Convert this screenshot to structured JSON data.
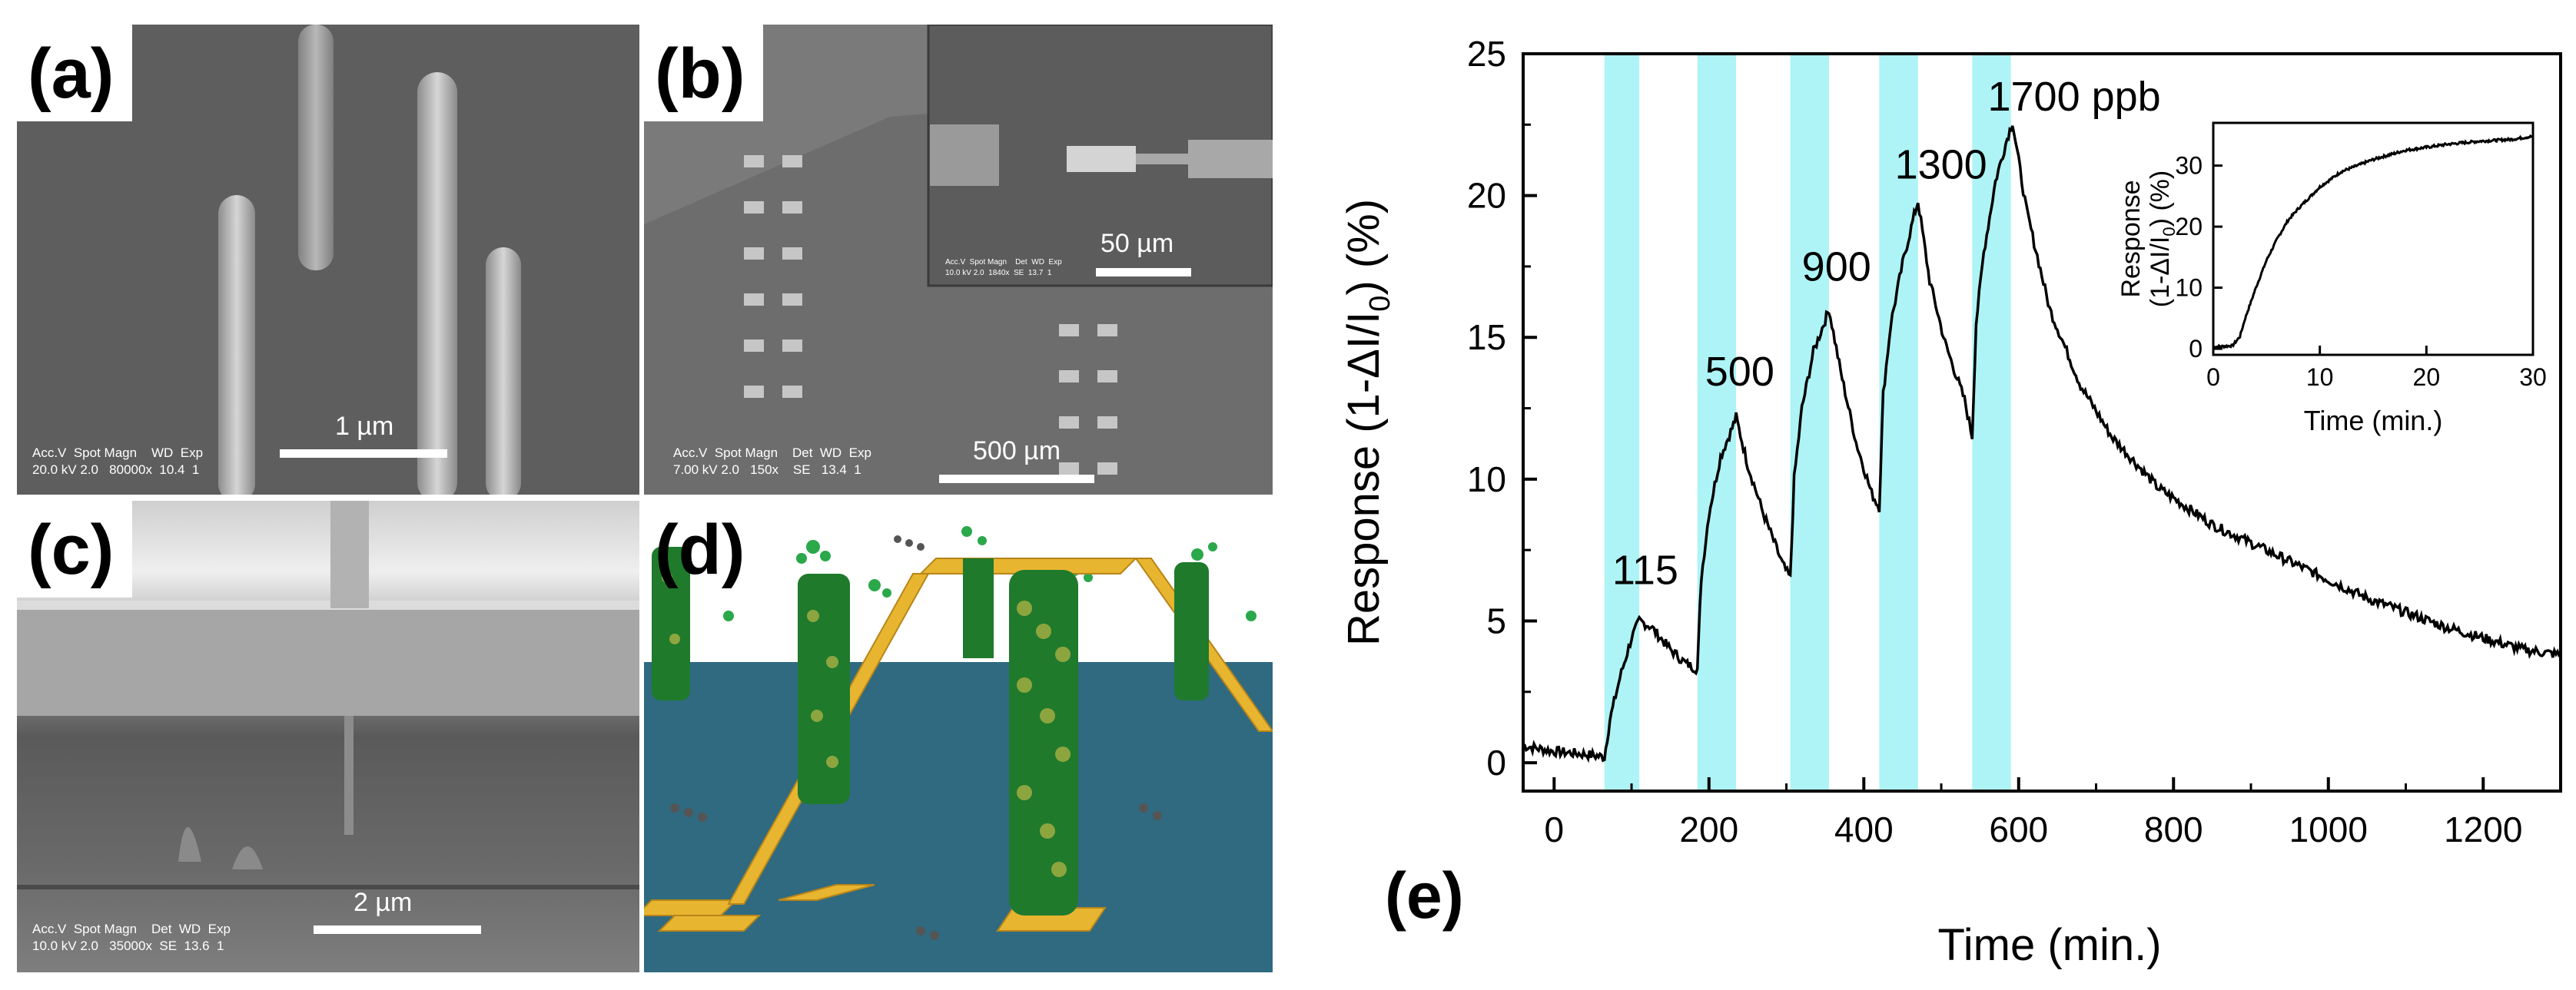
{
  "panels": {
    "a": {
      "label": "(a)",
      "scale": "1 µm",
      "meta_head": "Acc.V  Spot Magn    WD  Exp",
      "meta_vals": "20.0 kV 2.0   80000x  10.4  1"
    },
    "b": {
      "label": "(b)",
      "scale": "500 µm",
      "meta_head": "Acc.V  Spot Magn    Det  WD  Exp",
      "meta_vals": "7.00 kV 2.0   150x    SE   13.4  1",
      "inset_scale": "50 µm",
      "inset_meta_head": "Acc.V  Spot Magn    Det  WD  Exp",
      "inset_meta_vals": "10.0 kV 2.0  1840x  SE  13.7  1"
    },
    "c": {
      "label": "(c)",
      "scale": "2 µm",
      "meta_head": "Acc.V  Spot Magn    Det  WD  Exp",
      "meta_vals": "10.0 kV 2.0   35000x  SE  13.6  1"
    },
    "d": {
      "label": "(d)"
    },
    "e": {
      "label": "(e)"
    }
  },
  "colors": {
    "exposure_band": "#aef4f6",
    "trace": "#000000"
  },
  "chart_data": [
    {
      "type": "line",
      "title": "",
      "xlabel": "Time (min.)",
      "ylabel": "Response (1-ΔI/I0) (%)",
      "ylabel_parts": {
        "pre": "Response (1-ΔI/I",
        "sub": "0",
        "post": ") (%)"
      },
      "xlim": [
        -40,
        1300
      ],
      "ylim": [
        -1,
        25
      ],
      "xticks": [
        0,
        200,
        400,
        600,
        800,
        1000,
        1200
      ],
      "yticks": [
        0,
        5,
        10,
        15,
        20,
        25
      ],
      "exposure_bands": [
        [
          65,
          110
        ],
        [
          185,
          235
        ],
        [
          305,
          355
        ],
        [
          420,
          470
        ],
        [
          540,
          590
        ]
      ],
      "annotations": [
        {
          "text": "115",
          "x": 75,
          "y": 6.3
        },
        {
          "text": "500",
          "x": 195,
          "y": 13.3
        },
        {
          "text": "900",
          "x": 320,
          "y": 17.0
        },
        {
          "text": "1300",
          "x": 440,
          "y": 20.6
        },
        {
          "text": "1700 ppb",
          "x": 560,
          "y": 23.0
        }
      ],
      "series": [
        {
          "name": "Response",
          "x": [
            -40,
            0,
            40,
            65,
            72,
            85,
            100,
            110,
            125,
            150,
            170,
            185,
            190,
            200,
            215,
            230,
            235,
            250,
            270,
            295,
            305,
            310,
            320,
            335,
            350,
            355,
            370,
            390,
            410,
            420,
            425,
            435,
            450,
            465,
            470,
            485,
            505,
            530,
            540,
            545,
            555,
            570,
            585,
            592,
            610,
            640,
            680,
            720,
            780,
            850,
            950,
            1050,
            1150,
            1250,
            1300
          ],
          "y": [
            0.6,
            0.4,
            0.3,
            0.2,
            1.5,
            3.0,
            4.4,
            5.0,
            4.8,
            4.0,
            3.5,
            3.3,
            6.5,
            8.8,
            10.8,
            11.8,
            12.2,
            10.5,
            8.8,
            7.0,
            6.5,
            10.0,
            12.5,
            14.5,
            15.6,
            16.0,
            13.8,
            11.3,
            9.5,
            9.0,
            13.0,
            15.5,
            17.6,
            19.3,
            19.8,
            17.0,
            14.8,
            12.8,
            11.5,
            15.5,
            18.0,
            20.5,
            22.0,
            22.6,
            19.5,
            16.0,
            13.3,
            11.5,
            9.7,
            8.4,
            7.1,
            5.8,
            4.8,
            4.0,
            3.8
          ]
        }
      ]
    },
    {
      "type": "line",
      "title": "",
      "xlabel": "Time (min.)",
      "ylabel": "Response (1-ΔI/I0) (%)",
      "ylabel_parts": {
        "l1": "Response",
        "pre": "(1-ΔI/I",
        "sub": "0",
        "post": ") (%)"
      },
      "xlim": [
        0,
        30
      ],
      "ylim": [
        -1,
        37
      ],
      "xticks": [
        0,
        10,
        20,
        30
      ],
      "yticks": [
        0,
        10,
        20,
        30
      ],
      "series": [
        {
          "name": "Response",
          "x": [
            0,
            1,
            1.8,
            2.5,
            3,
            4,
            5,
            6,
            7,
            8,
            10,
            12,
            15,
            18,
            20,
            22,
            25,
            28,
            30
          ],
          "y": [
            0.3,
            0.4,
            0.5,
            2,
            5,
            10,
            14.5,
            18,
            21,
            23,
            26.5,
            29,
            31,
            32.5,
            33,
            33.5,
            34,
            34.3,
            34.8
          ]
        }
      ]
    }
  ]
}
